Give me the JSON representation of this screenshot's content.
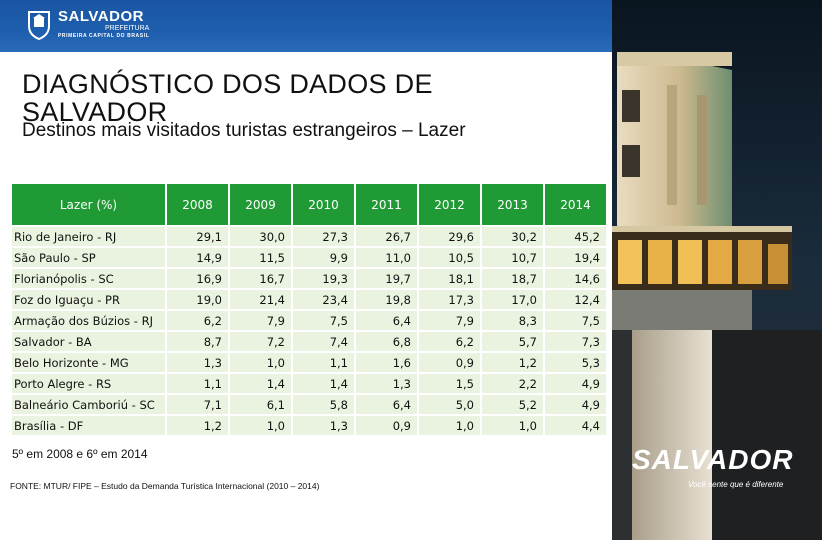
{
  "header": {
    "logo_name": "SALVADOR",
    "logo_sub": "PREFEITURA",
    "logo_caption": "PRIMEIRA CAPITAL DO BRASIL"
  },
  "title": "DIAGNÓSTICO DOS DADOS DE SALVADOR",
  "subtitle": "Destinos mais visitados turistas estrangeiros – Lazer",
  "table": {
    "columns": [
      "Lazer (%)",
      "2008",
      "2009",
      "2010",
      "2011",
      "2012",
      "2013",
      "2014"
    ],
    "rows": [
      [
        "Rio de Janeiro - RJ",
        "29,1",
        "30,0",
        "27,3",
        "26,7",
        "29,6",
        "30,2",
        "45,2"
      ],
      [
        "São Paulo - SP",
        "14,9",
        "11,5",
        "9,9",
        "11,0",
        "10,5",
        "10,7",
        "19,4"
      ],
      [
        "Florianópolis - SC",
        "16,9",
        "16,7",
        "19,3",
        "19,7",
        "18,1",
        "18,7",
        "14,6"
      ],
      [
        "Foz do Iguaçu - PR",
        "19,0",
        "21,4",
        "23,4",
        "19,8",
        "17,3",
        "17,0",
        "12,4"
      ],
      [
        "Armação dos Búzios - RJ",
        "6,2",
        "7,9",
        "7,5",
        "6,4",
        "7,9",
        "8,3",
        "7,5"
      ],
      [
        "Salvador - BA",
        "8,7",
        "7,2",
        "7,4",
        "6,8",
        "6,2",
        "5,7",
        "7,3"
      ],
      [
        "Belo Horizonte - MG",
        "1,3",
        "1,0",
        "1,1",
        "1,6",
        "0,9",
        "1,2",
        "5,3"
      ],
      [
        "Porto Alegre - RS",
        "1,1",
        "1,4",
        "1,4",
        "1,3",
        "1,5",
        "2,2",
        "4,9"
      ],
      [
        "Balneário Camboriú - SC",
        "7,1",
        "6,1",
        "5,8",
        "6,4",
        "5,0",
        "5,2",
        "4,9"
      ],
      [
        "Brasília - DF",
        "1,2",
        "1,0",
        "1,3",
        "0,9",
        "1,0",
        "1,0",
        "4,4"
      ]
    ]
  },
  "note": "5º em 2008 e 6º em 2014",
  "source": "FONTE: MTUR/ FIPE – Estudo da Demanda Turística Internacional (2010 – 2014)",
  "brand": {
    "name": "SALVADOR",
    "tagline": "Você sente que é diferente"
  },
  "colors": {
    "header_blue": "#1d5fae",
    "table_header_green": "#1f9a34",
    "table_cell_bg": "#eaf3df"
  }
}
